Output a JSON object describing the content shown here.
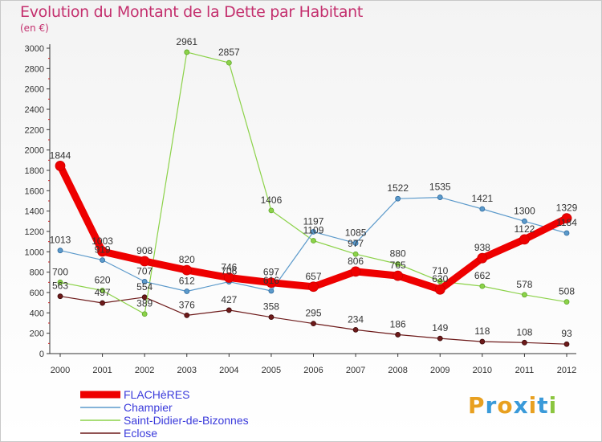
{
  "title": "Evolution du Montant de la Dette par Habitant",
  "subtitle": "(en €)",
  "logo": {
    "text": "Proxiti",
    "colors": [
      "#e8a020",
      "#3a9ad9",
      "#e8a020",
      "#3a9ad9",
      "#e8a020",
      "#3a9ad9",
      "#8bc53f"
    ]
  },
  "chart_data": {
    "type": "line",
    "x": [
      "2000",
      "2001",
      "2002",
      "2003",
      "2004",
      "2005",
      "2006",
      "2007",
      "2008",
      "2009",
      "2010",
      "2011",
      "2012"
    ],
    "ylim": [
      0,
      3000
    ],
    "yticks": [
      0,
      200,
      400,
      600,
      800,
      1000,
      1200,
      1400,
      1600,
      1800,
      2000,
      2200,
      2400,
      2600,
      2800,
      3000
    ],
    "grid": false,
    "legend_position": "bottom-left",
    "series": [
      {
        "name": "FLACHèRES",
        "color": "#ee0000",
        "values": [
          1844,
          1003,
          908,
          820,
          746,
          697,
          657,
          806,
          765,
          630,
          938,
          1122,
          1329
        ]
      },
      {
        "name": "Champier",
        "color": "#5c9acb",
        "values": [
          1013,
          919,
          707,
          612,
          706,
          616,
          1197,
          1085,
          1522,
          1535,
          1421,
          1300,
          1184
        ]
      },
      {
        "name": "Saint-Didier-de-Bizonnes",
        "color": "#8cd249",
        "values": [
          700,
          620,
          389,
          2961,
          2857,
          1406,
          1109,
          977,
          880,
          710,
          662,
          578,
          508
        ]
      },
      {
        "name": "Eclose",
        "color": "#6d1a1a",
        "values": [
          563,
          497,
          554,
          376,
          427,
          358,
          295,
          234,
          186,
          149,
          118,
          108,
          93
        ]
      }
    ],
    "data_labels": [
      [
        "1844",
        "1003",
        "908",
        "820",
        "746",
        "697",
        "657",
        "806",
        "765",
        "630",
        "938",
        "1122",
        "1329"
      ],
      [
        "1013",
        "919",
        "707",
        "612",
        "706",
        "616",
        "1197",
        "1085",
        "1522",
        "1535",
        "1421",
        "1300",
        "1184"
      ],
      [
        "700",
        "620",
        "389",
        "2961",
        "2857",
        "1406",
        "1109",
        "977",
        "880",
        "710",
        "662",
        "578",
        "508"
      ],
      [
        "563",
        "497",
        "554",
        "376",
        "427",
        "358",
        "295",
        "234",
        "186",
        "149",
        "118",
        "108",
        "93"
      ]
    ]
  }
}
